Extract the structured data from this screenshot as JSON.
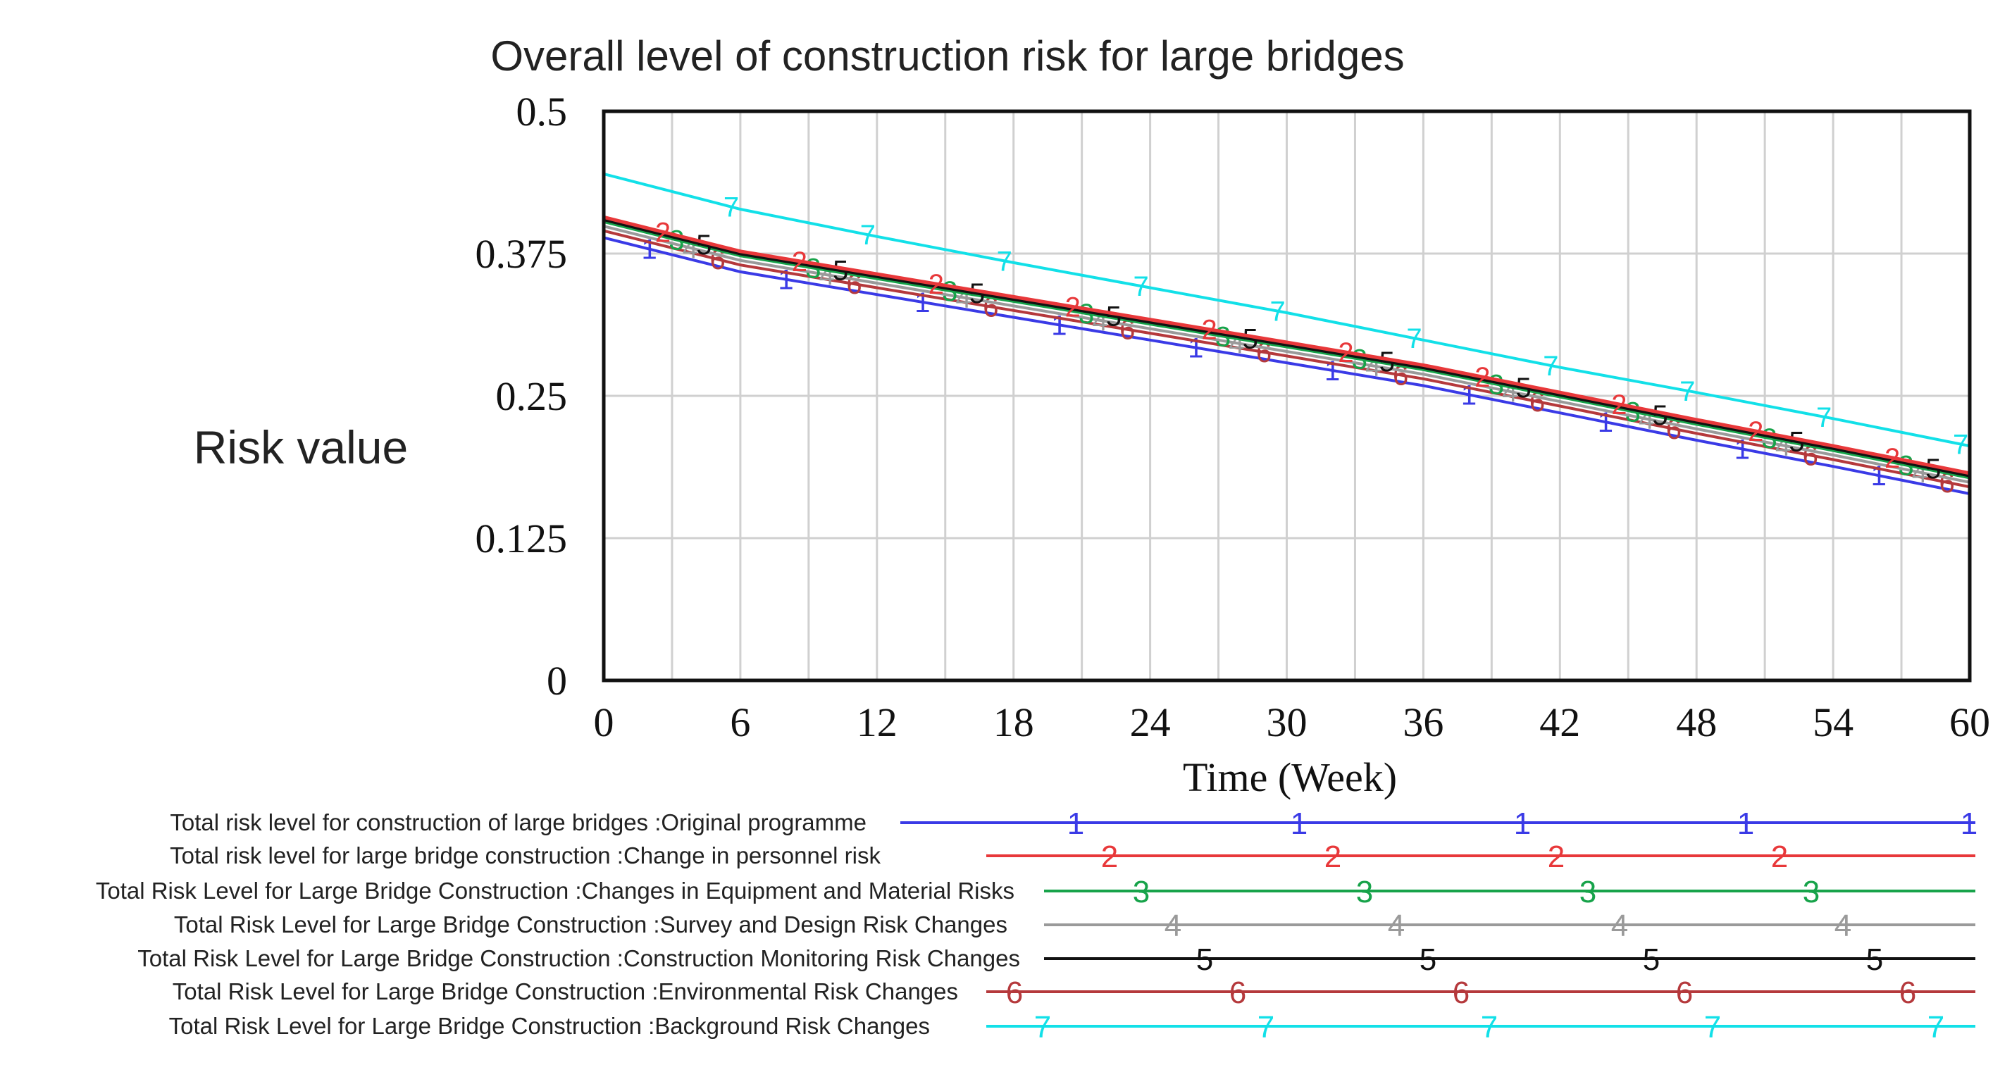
{
  "chart_data": {
    "type": "line",
    "title": "Overall level of construction risk for large bridges",
    "xlabel": "Time (Week)",
    "ylabel": "Risk value",
    "xlim": [
      0,
      60
    ],
    "ylim": [
      0,
      0.5
    ],
    "x_ticks": [
      "0",
      "6",
      "12",
      "18",
      "24",
      "30",
      "36",
      "42",
      "48",
      "54",
      "60"
    ],
    "y_ticks": [
      "0",
      "0.125",
      "0.25",
      "0.375",
      "0.5"
    ],
    "grid": true,
    "x": [
      0,
      6,
      12,
      18,
      24,
      30,
      36,
      42,
      48,
      54,
      60
    ],
    "series": [
      {
        "name": "Total risk level for construction of large bridges :Original programme",
        "marker": "1",
        "color": "#3a3ae6",
        "values": [
          0.389,
          0.359,
          0.339,
          0.319,
          0.299,
          0.279,
          0.259,
          0.235,
          0.211,
          0.188,
          0.164
        ]
      },
      {
        "name": "Total risk level for large bridge construction :Change in personnel risk",
        "marker": "2",
        "color": "#e8383a",
        "values": [
          0.407,
          0.377,
          0.357,
          0.337,
          0.317,
          0.297,
          0.277,
          0.253,
          0.229,
          0.206,
          0.182
        ]
      },
      {
        "name": "Total Risk Level for Large Bridge Construction :Changes in Equipment and Material Risks",
        "marker": "3",
        "color": "#17a34a",
        "values": [
          0.403,
          0.373,
          0.353,
          0.333,
          0.313,
          0.293,
          0.273,
          0.249,
          0.225,
          0.202,
          0.178
        ]
      },
      {
        "name": "Total Risk Level for Large Bridge Construction :Survey and Design Risk Changes",
        "marker": "4",
        "color": "#9a9a9a",
        "values": [
          0.399,
          0.369,
          0.349,
          0.329,
          0.309,
          0.289,
          0.269,
          0.245,
          0.221,
          0.198,
          0.174
        ]
      },
      {
        "name": "Total Risk Level for Large Bridge Construction :Construction Monitoring Risk Changes",
        "marker": "5",
        "color": "#111111",
        "values": [
          0.405,
          0.375,
          0.355,
          0.335,
          0.315,
          0.295,
          0.275,
          0.251,
          0.227,
          0.204,
          0.18
        ]
      },
      {
        "name": "Total Risk Level for Large Bridge Construction :Environmental Risk Changes",
        "marker": "6",
        "color": "#b5393c",
        "values": [
          0.395,
          0.365,
          0.345,
          0.325,
          0.305,
          0.285,
          0.265,
          0.241,
          0.217,
          0.194,
          0.17
        ]
      },
      {
        "name": "Total Risk Level for Large Bridge Construction :Background Risk Changes",
        "marker": "7",
        "color": "#12e0e8",
        "values": [
          0.445,
          0.414,
          0.39,
          0.367,
          0.345,
          0.323,
          0.299,
          0.275,
          0.253,
          0.23,
          0.206
        ]
      }
    ]
  }
}
